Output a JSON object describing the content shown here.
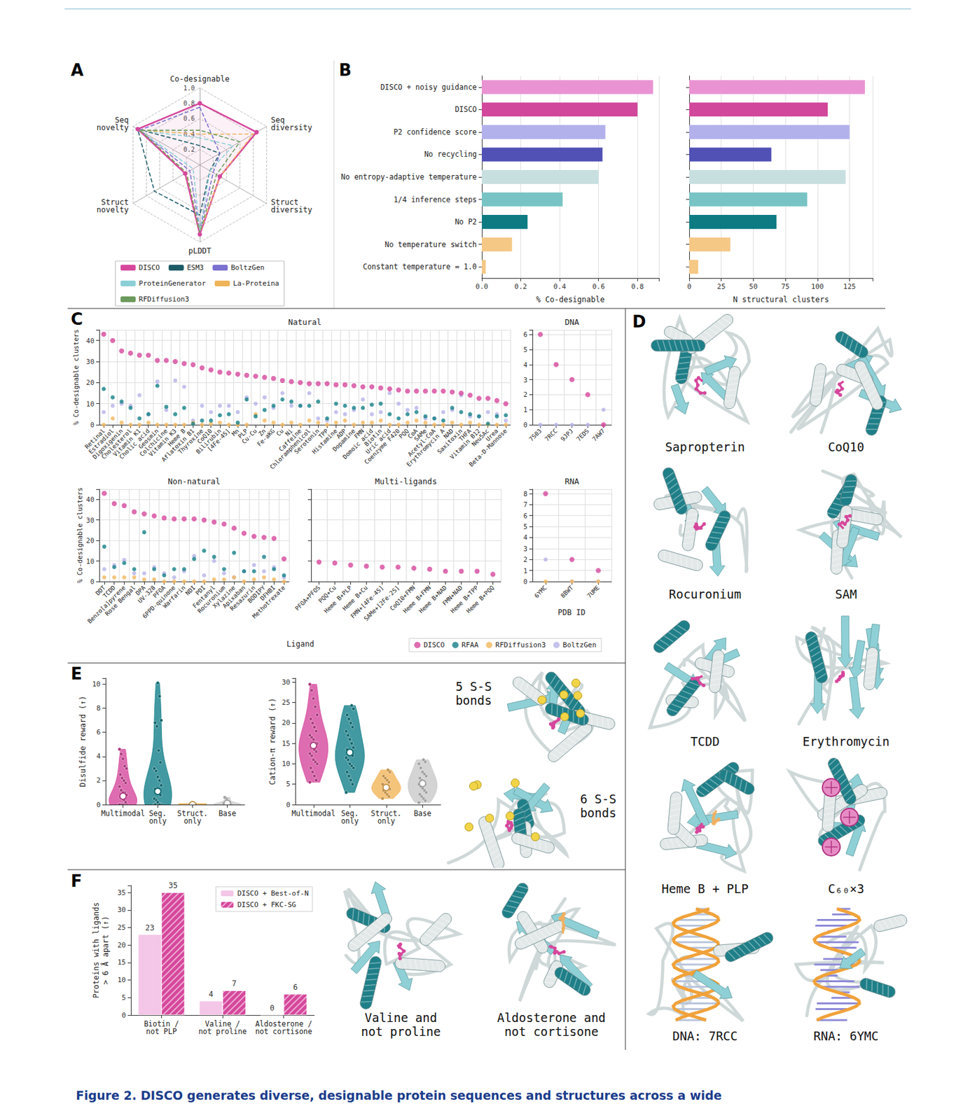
{
  "chart_data": [
    {
      "panel": "A",
      "type": "radar",
      "categories": [
        "Co-designable",
        "Seq novelty",
        "Struct novelty",
        "pLDDT",
        "Struct diversity",
        "Seq diversity"
      ],
      "ylim": [
        0,
        1
      ],
      "yticks": [
        0.2,
        0.4,
        0.6,
        0.8,
        {
          "value": 1,
          "label": "1.0"
        }
      ],
      "grid": true,
      "legend": "bottom",
      "series": [
        {
          "name": "DISCO",
          "color": "#d6479c",
          "line_style": "solid",
          "marker": "circle",
          "values": [
            0.8,
            0.93,
            0.22,
            0.9,
            0.3,
            0.85
          ]
        },
        {
          "name": "ESM3",
          "color": "#1d5c66",
          "line_style": "dashed",
          "marker": "none",
          "values": [
            0.25,
            0.93,
            0.68,
            0.65,
            0.15,
            0.3
          ]
        },
        {
          "name": "BoltzGen",
          "color": "#7a70cf",
          "line_style": "dashed",
          "marker": "none",
          "values": [
            0.75,
            0.9,
            0.15,
            0.85,
            0.2,
            0.3
          ]
        },
        {
          "name": "ProteinGenerator",
          "color": "#8ccfd6",
          "line_style": "dashed",
          "marker": "none",
          "values": [
            0.35,
            0.9,
            0.1,
            0.85,
            0.15,
            0.5
          ]
        },
        {
          "name": "La-Proteina",
          "color": "#efb45a",
          "line_style": "dashed",
          "marker": "none",
          "values": [
            0.4,
            0.9,
            0.2,
            0.88,
            0.3,
            0.8
          ]
        },
        {
          "name": "RFDiffusion3",
          "color": "#6b9a5c",
          "line_style": "dashed",
          "marker": "none",
          "values": [
            0.45,
            0.9,
            0.2,
            0.88,
            0.25,
            0.6
          ]
        }
      ]
    },
    {
      "panel": "B",
      "type": "bar",
      "orientation": "horizontal",
      "categories": [
        "DISCO + noisy guidance",
        "DISCO",
        "P2 confidence score",
        "No recycling",
        "No entropy-adaptive temperature",
        "1/4 inference steps",
        "No P2",
        "No temperature switch",
        "Constant temperature = 1.0"
      ],
      "values": [
        0.88,
        0.8,
        0.635,
        0.62,
        0.6,
        0.415,
        0.235,
        0.155,
        0.02
      ],
      "colors": [
        "#e993d3",
        "#d1479b",
        "#b3b1ec",
        "#5150b5",
        "#c8dfe0",
        "#78c3c4",
        "#0e7b83",
        "#f5c886",
        "#f5c886"
      ],
      "xlabel": "% Co-designable",
      "xlim": [
        0,
        0.91
      ],
      "xticks": [
        {
          "value": 0,
          "label": "0.0"
        },
        0.2,
        0.4,
        0.6,
        0.8
      ],
      "grid": true
    },
    {
      "type": "bar",
      "orientation": "horizontal",
      "categories": [
        "DISCO + noisy guidance",
        "DISCO",
        "P2 confidence score",
        "No recycling",
        "No entropy-adaptive temperature",
        "1/4 inference steps",
        "No P2",
        "No temperature switch",
        "Constant temperature = 1.0"
      ],
      "values": [
        137,
        108,
        125,
        64,
        122,
        92,
        68,
        32,
        7
      ],
      "colors": [
        "#e993d3",
        "#d1479b",
        "#b3b1ec",
        "#5150b5",
        "#c8dfe0",
        "#78c3c4",
        "#0e7b83",
        "#f5c886",
        "#f5c886"
      ],
      "xlabel": "N structural clusters",
      "xlim": [
        0,
        143
      ],
      "xticks": [
        0,
        25,
        50,
        75,
        100,
        125
      ],
      "grid": true,
      "tick_labels": "x"
    },
    {
      "panel": "C",
      "type": "scatter",
      "title": "Natural",
      "categories": [
        "Retinal",
        "Estradiol",
        "Digoxigenin",
        "Cholesterol",
        "Vitamin K1",
        "Cholic acid",
        "Geosmin",
        "Colchicine",
        "Vitamin K3",
        "Heme B",
        "Aflatoxin B1",
        "Thyroxine",
        "CoQ10",
        "Bilirubin",
        "[4Fe-4S]",
        "Mn",
        "PLP",
        "Cu-Cu",
        "Zn",
        "Fe-aKG",
        "Cu",
        "Ni",
        "Caffeine",
        "Chloramphenicol",
        "Serotonin",
        "TPP",
        "Histamine",
        "ADP",
        "Dopamine",
        "FMN",
        "Domoic acid",
        "Biotin",
        "Uric acid",
        "Coenzyme F420",
        "PQQ",
        "CoA",
        "SAMe",
        "Acetyl-CoA",
        "Erythromycin A",
        "NAD",
        "Saxitoxin",
        "THFA",
        "Vitamin B12",
        "Neu5Ac",
        "Urea",
        "Beta-D-Mannose"
      ],
      "ylabel": "% Co-designable clusters",
      "ylim": [
        0,
        45
      ],
      "yticks": [
        0,
        10,
        20,
        30,
        40
      ],
      "grid": true,
      "legend": "bottom",
      "series": [
        {
          "name": "DISCO",
          "color": "#d6479c",
          "values": [
            43,
            40,
            35,
            34,
            33,
            33,
            30.5,
            30.5,
            30,
            29,
            28.5,
            27,
            26,
            25,
            24.5,
            24,
            23.5,
            23,
            22.5,
            22,
            21,
            20.5,
            20,
            19.5,
            19.5,
            19.5,
            19,
            19,
            18.5,
            18,
            18,
            17.5,
            17,
            16.5,
            16,
            16,
            16,
            16,
            16,
            15.5,
            15,
            14,
            12.5,
            12.5,
            11.5,
            10
          ]
        },
        {
          "name": "RFAA",
          "color": "#137f86",
          "values": [
            17,
            13,
            11,
            8,
            3,
            5,
            18.5,
            8.5,
            5,
            8,
            0.5,
            2,
            2,
            4.5,
            5,
            1,
            12,
            4,
            7,
            9,
            12,
            11,
            9,
            9,
            11,
            3,
            10,
            9,
            8,
            8,
            9.5,
            10,
            5,
            3,
            5,
            6,
            4,
            3,
            2,
            8,
            6,
            5,
            4,
            0.5,
            4,
            4.5
          ]
        },
        {
          "name": "RFDiffusion3",
          "color": "#f3b75e",
          "values": [
            0,
            3,
            1,
            0,
            0,
            1,
            0,
            0,
            0,
            0,
            1,
            0,
            0.5,
            1,
            0,
            0,
            0,
            5,
            2,
            1,
            0,
            1,
            0,
            2,
            1,
            0,
            1,
            2,
            0,
            1,
            1,
            2,
            0,
            0,
            1,
            2,
            1,
            0,
            0,
            1,
            0,
            1,
            0,
            0,
            0,
            0
          ]
        },
        {
          "name": "BoltzGen",
          "color": "#b6b3e8",
          "values": [
            6,
            9,
            10,
            9,
            14,
            5,
            20.5,
            7,
            21,
            18,
            2,
            9,
            6,
            9,
            9,
            6,
            13,
            10,
            13,
            8,
            15,
            9,
            9,
            15,
            3,
            2,
            6,
            5,
            7,
            12,
            5,
            6,
            15,
            10,
            7,
            8,
            3,
            3,
            6,
            7,
            14,
            4,
            4,
            6,
            5,
            2
          ]
        }
      ]
    },
    {
      "type": "scatter",
      "title": "DNA",
      "categories": [
        "7S03",
        "7RCC",
        "9JPJ",
        "7EDS",
        "7AW7"
      ],
      "ylim": [
        0,
        6.3
      ],
      "yticks": [
        0,
        1,
        2,
        3,
        4,
        5,
        6
      ],
      "grid": true,
      "series": [
        {
          "name": "DISCO",
          "color": "#d6479c",
          "values": [
            6,
            4,
            3,
            2,
            0
          ]
        },
        {
          "name": "BoltzGen",
          "color": "#b6b3e8",
          "values": [
            0,
            0,
            0,
            0,
            1
          ]
        }
      ]
    },
    {
      "type": "scatter",
      "title": "Non-natural",
      "xlabel": "Ligand",
      "categories": [
        "DDT",
        "TCDD",
        "Benzo[a]pyrene",
        "Rose Bengal",
        "DPA",
        "UV-328",
        "PFOA",
        "6PPD-quinone",
        "Warfarin",
        "NDI",
        "PDI",
        "Fentanyl",
        "Rocuronium",
        "Xylazine",
        "Apixaban",
        "Resazurin",
        "BODIPY",
        "DFHBI",
        "Methotrexate"
      ],
      "ylabel": "% Co-designable clusters",
      "ylim": [
        0,
        45
      ],
      "yticks": [
        0,
        10,
        20,
        30,
        40
      ],
      "grid": true,
      "series": [
        {
          "name": "DISCO",
          "color": "#d6479c",
          "values": [
            43,
            38,
            37,
            34,
            33,
            32,
            31,
            30.5,
            30.5,
            30.5,
            30,
            29,
            28,
            26,
            23.5,
            22,
            21.5,
            21,
            11
          ]
        },
        {
          "name": "RFAA",
          "color": "#137f86",
          "values": [
            17,
            7,
            9,
            6,
            24,
            6,
            3,
            6,
            6,
            11,
            15,
            12,
            6,
            14,
            5,
            5,
            12,
            6,
            3
          ]
        },
        {
          "name": "RFDiffusion3",
          "color": "#f3b75e",
          "values": [
            2,
            2,
            2,
            2,
            1,
            1,
            0,
            0,
            0,
            0,
            0,
            1,
            1,
            2,
            0,
            1,
            2,
            1,
            0
          ]
        },
        {
          "name": "BoltzGen",
          "color": "#b6b3e8",
          "values": [
            6,
            8,
            10.5,
            4,
            4,
            7,
            4,
            2,
            5,
            12.5,
            3,
            10,
            4,
            2,
            5,
            8,
            5,
            7,
            2
          ]
        }
      ]
    },
    {
      "type": "scatter",
      "title": "Multi-ligands",
      "categories": [
        "PFOA+PFOS",
        "PQQ+Cu",
        "Heme B+PLP",
        "Heme B+Cu",
        "FMN+[4Fe-4S]",
        "SAMe+[2Fe-2S]",
        "CoQ10+FMN",
        "Heme B+FMN",
        "Heme B+NAD",
        "FMN+NAD",
        "Heme B+TPP",
        "Heme B+PQQ"
      ],
      "ylim": [
        0,
        45
      ],
      "yticks": [
        0,
        10,
        20,
        30,
        40
      ],
      "grid": true,
      "tick_labels": "x",
      "series": [
        {
          "name": "DISCO",
          "color": "#d6479c",
          "values": [
            9.5,
            9,
            8,
            7.5,
            7,
            7,
            6.5,
            6,
            5,
            5,
            5,
            3.5
          ]
        }
      ]
    },
    {
      "type": "scatter",
      "title": "RNA",
      "xlabel": "PDB ID",
      "categories": [
        "6YMC",
        "8BWT",
        "7UME"
      ],
      "ylim": [
        0,
        8.4
      ],
      "yticks": [
        0,
        1,
        2,
        3,
        4,
        5,
        6,
        7,
        8
      ],
      "grid": true,
      "series": [
        {
          "name": "DISCO",
          "color": "#d6479c",
          "values": [
            8,
            2,
            1
          ]
        },
        {
          "name": "RFDiffusion3",
          "color": "#f3b75e",
          "values": [
            0,
            0,
            0
          ]
        },
        {
          "name": "BoltzGen",
          "color": "#b6b3e8",
          "values": [
            2,
            0,
            0
          ]
        }
      ]
    },
    {
      "panel": "E",
      "type": "violin",
      "categories": [
        "Multimodal",
        "Seq. only",
        "Struct. only",
        "Base"
      ],
      "colors": [
        "#d6479c",
        "#138089",
        "#f3b55a",
        "#c9c9c9"
      ],
      "ylabel": "Disulfide reward (↑)",
      "ylim": [
        0,
        10.5
      ],
      "yticks": [
        0,
        2,
        4,
        6,
        8,
        10
      ],
      "values": [
        [
          0,
          0,
          0,
          0,
          0,
          0,
          0,
          0,
          0,
          0,
          0.2,
          0.4,
          0.5,
          0.6,
          0.8,
          1,
          1,
          1.2,
          1.5,
          1.8,
          2,
          2.2,
          2.5,
          3,
          3.2,
          3.8,
          4.2,
          4.6
        ],
        [
          0,
          0,
          0,
          0,
          0,
          0,
          0,
          0.2,
          0.4,
          0.5,
          0.8,
          1,
          1,
          1.3,
          1.6,
          2,
          2.3,
          2.8,
          3,
          3.5,
          4.5,
          6.5,
          6.8,
          7,
          9,
          10.1
        ],
        [
          0,
          0,
          0,
          0,
          0,
          0,
          0,
          0,
          0,
          0,
          0,
          0,
          0,
          0,
          0
        ],
        [
          0,
          0,
          0,
          0,
          0,
          0,
          0,
          0,
          0,
          0.1,
          0.2,
          0.3,
          0.5,
          0.6
        ]
      ],
      "medians": [
        0.7,
        1.1,
        0,
        0.1
      ]
    },
    {
      "type": "violin",
      "categories": [
        "Multimodal",
        "Seq. only",
        "Struct. only",
        "Base"
      ],
      "colors": [
        "#d6479c",
        "#138089",
        "#f3b55a",
        "#c9c9c9"
      ],
      "ylabel": "Cation-π reward (↑)",
      "ylim": [
        0,
        31
      ],
      "yticks": [
        0,
        5,
        10,
        15,
        20,
        25,
        30
      ],
      "values": [
        [
          5.5,
          6,
          7,
          8,
          9,
          10,
          10.5,
          11,
          12,
          12.5,
          13,
          13.5,
          14,
          14.5,
          15,
          15,
          16,
          16.5,
          17,
          18,
          19,
          20,
          21,
          22,
          24,
          26,
          28,
          29.5
        ],
        [
          3,
          5,
          6,
          7,
          8,
          9,
          9.5,
          10,
          11,
          11.5,
          12,
          12.5,
          13,
          13.5,
          14,
          15,
          16,
          17,
          18,
          19,
          20,
          21,
          22,
          23.5,
          24.3
        ],
        [
          1.5,
          2,
          2.5,
          3,
          3.5,
          3.8,
          4,
          4.2,
          4.5,
          5,
          5.5,
          6,
          6.5,
          7,
          8,
          8.5
        ],
        [
          0.5,
          1,
          1.5,
          2,
          2.5,
          3,
          3.5,
          4,
          4.5,
          5,
          5,
          5.5,
          6,
          6.5,
          7,
          7.5,
          8,
          9,
          10,
          10.5,
          11
        ]
      ],
      "medians": [
        14.5,
        12.8,
        4.2,
        5.2
      ]
    },
    {
      "panel": "F",
      "type": "bar",
      "categories": [
        "Biotin / not PLP",
        "Valine / not proline",
        "Aldosterone / not cortisone"
      ],
      "ylabel": "Proteins with ligands > 6 Å apart (↑)",
      "ylim": [
        0,
        37
      ],
      "yticks": [
        0,
        5,
        10,
        15,
        20,
        25,
        30,
        35
      ],
      "legend": "upper right",
      "data_labels": true,
      "series": [
        {
          "name": "DISCO + Best-of-N",
          "color": "#f4c6e7",
          "values": [
            23,
            4,
            0
          ]
        },
        {
          "name": "DISCO + FKC-SG",
          "color": "#d6479c",
          "values": [
            35,
            7,
            6
          ]
        }
      ]
    }
  ],
  "structure_images": {
    "D": {
      "panel": "D",
      "labels": [
        "Sapropterin",
        "CoQ10",
        "Rocuronium",
        "SAM",
        "TCDD",
        "Erythromycin",
        "Heme B + PLP",
        "C₆₀×3",
        "DNA: 7RCC",
        "RNA: 6YMC"
      ]
    },
    "E": {
      "labels": [
        "5 S-S bonds",
        "6 S-S bonds"
      ]
    },
    "F": {
      "labels": [
        "Valine and not proline",
        "Aldosterone and not cortisone"
      ]
    }
  },
  "caption": "Figure 2. DISCO generates diverse, designable protein sequences and structures across a wide"
}
